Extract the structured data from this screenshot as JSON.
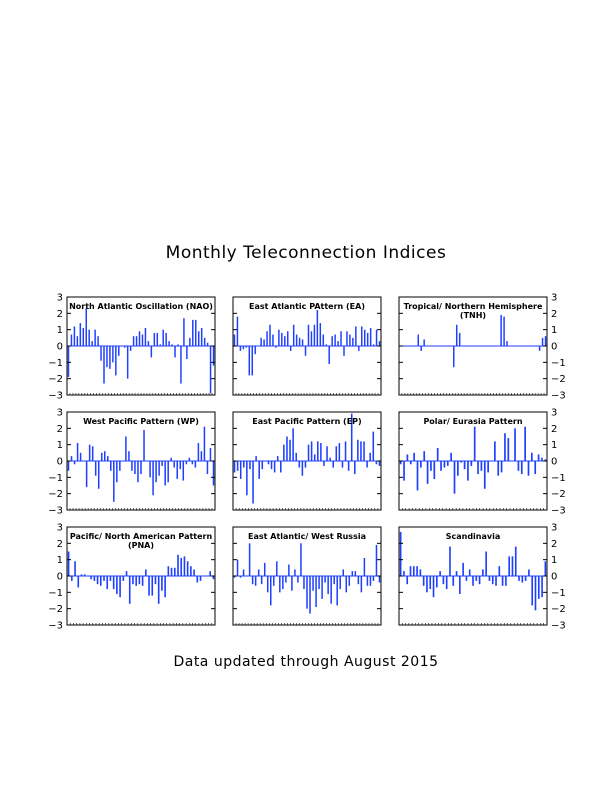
{
  "page": {
    "title": "Monthly Teleconnection Indices",
    "footer": "Data updated through August 2015"
  },
  "colors": {
    "bar": "#1f3fff",
    "frame": "#000000"
  },
  "chart_data": [
    {
      "type": "bar",
      "title": "North Atlantic Oscillation (NAO)",
      "title2": "",
      "ylim": [
        -3,
        3
      ],
      "yticks": [
        -3,
        -2,
        -1,
        0,
        1,
        2,
        3
      ],
      "values": [
        -1.9,
        0.7,
        1.2,
        0.6,
        1.4,
        1.1,
        2.3,
        1.0,
        0.3,
        1.0,
        0.6,
        -0.9,
        -2.3,
        -1.3,
        -1.4,
        -1.0,
        -1.8,
        -0.6,
        0.0,
        -0.1,
        -2.0,
        -0.3,
        0.6,
        0.6,
        0.9,
        0.7,
        1.1,
        0.3,
        -0.7,
        0.8,
        0.8,
        0.1,
        1.0,
        0.8,
        0.3,
        0.1,
        -0.7,
        0.1,
        -2.3,
        1.7,
        -0.8,
        0.5,
        1.6,
        1.6,
        0.9,
        1.1,
        0.5,
        0.2,
        -2.9,
        -1.2
      ]
    },
    {
      "type": "bar",
      "title": "East Atlantic PAttern (EA)",
      "title2": "",
      "ylim": [
        -3,
        3
      ],
      "yticks": [
        -3,
        -2,
        -1,
        0,
        1,
        2,
        3
      ],
      "values": [
        0.7,
        1.8,
        -0.3,
        -0.2,
        -0.1,
        -1.8,
        -1.8,
        -0.5,
        0.0,
        0.5,
        0.4,
        0.9,
        1.3,
        0.7,
        -0.1,
        1.0,
        0.8,
        0.6,
        0.9,
        -0.3,
        1.3,
        0.7,
        0.5,
        0.4,
        -0.6,
        1.3,
        0.9,
        1.3,
        2.2,
        1.4,
        0.7,
        0.1,
        -1.1,
        0.6,
        0.7,
        0.3,
        0.9,
        -0.6,
        0.9,
        0.7,
        0.5,
        1.2,
        -0.3,
        1.2,
        1.0,
        0.8,
        1.1,
        0.1,
        1.0,
        0.3
      ]
    },
    {
      "type": "bar",
      "title": "Tropical/ Northern Hemisphere",
      "title2": "(TNH)",
      "ylim": [
        -3,
        3
      ],
      "yticks": [
        -3,
        -2,
        -1,
        0,
        1,
        2,
        3
      ],
      "values": [
        0,
        0,
        0,
        0,
        0,
        0,
        0.7,
        -0.3,
        0.4,
        0,
        0,
        0,
        0,
        0,
        0,
        0,
        0,
        0,
        -1.3,
        1.3,
        0.8,
        0,
        0,
        0,
        0,
        0,
        0,
        0,
        0,
        0,
        0,
        0,
        0,
        0,
        1.9,
        1.8,
        0.3,
        0,
        0,
        0,
        0,
        0,
        0,
        0,
        0,
        0,
        0,
        -0.3,
        0.5,
        0.6
      ]
    },
    {
      "type": "bar",
      "title": "West Pacific Pattern (WP)",
      "title2": "",
      "ylim": [
        -3,
        3
      ],
      "yticks": [
        -3,
        -2,
        -1,
        0,
        1,
        2,
        3
      ],
      "values": [
        -0.6,
        0.3,
        -0.2,
        1.1,
        0.5,
        0.0,
        -1.6,
        1.0,
        0.9,
        -0.9,
        -1.7,
        0.5,
        0.6,
        0.3,
        -0.6,
        -2.5,
        -1.3,
        -0.6,
        0.0,
        1.5,
        0.6,
        -0.6,
        -0.8,
        -1.3,
        -0.8,
        1.9,
        0.0,
        -1.0,
        -2.1,
        -1.3,
        -0.9,
        -0.3,
        -1.5,
        -1.3,
        0.2,
        -0.4,
        -1.1,
        -0.5,
        -1.2,
        -0.2,
        0.2,
        -0.2,
        -0.4,
        1.1,
        0.6,
        2.1,
        -0.8,
        0.8,
        -1.5
      ]
    },
    {
      "type": "bar",
      "title": "East Pacific Pattern (EP)",
      "title2": "",
      "ylim": [
        -3,
        3
      ],
      "yticks": [
        -3,
        -2,
        -1,
        0,
        1,
        2,
        3
      ],
      "values": [
        -0.7,
        -0.6,
        -1.1,
        -0.4,
        -2.1,
        -0.5,
        -2.6,
        0.3,
        -1.1,
        -0.5,
        0.0,
        -0.2,
        -0.5,
        -0.7,
        0.3,
        -0.7,
        1.0,
        1.5,
        1.3,
        2.0,
        0.5,
        -0.4,
        -0.9,
        -0.4,
        1.0,
        1.2,
        0.4,
        1.2,
        1.1,
        -0.3,
        0.9,
        0.2,
        -0.4,
        0.9,
        1.1,
        -0.4,
        1.2,
        -0.6,
        2.9,
        -0.8,
        1.3,
        1.2,
        1.2,
        -0.4,
        0.5,
        1.8,
        -0.2,
        -0.3
      ]
    },
    {
      "type": "bar",
      "title": "Polar/ Eurasia Pattern",
      "title2": "",
      "ylim": [
        -3,
        3
      ],
      "yticks": [
        -3,
        -2,
        -1,
        0,
        1,
        2,
        3
      ],
      "values": [
        -0.2,
        -1.2,
        0.4,
        -0.2,
        0.5,
        -1.8,
        -0.4,
        0.6,
        -1.4,
        -0.6,
        -1.1,
        0.8,
        -0.6,
        -0.4,
        -0.3,
        0.5,
        -2.0,
        -0.9,
        -0.1,
        -0.5,
        -1.2,
        -0.3,
        2.1,
        -0.8,
        -0.6,
        -1.7,
        -0.7,
        0.0,
        1.2,
        -0.9,
        -0.7,
        1.7,
        1.4,
        0.0,
        2.0,
        -0.6,
        -0.8,
        2.1,
        -0.9,
        0.5,
        -0.8,
        0.4,
        0.2,
        0.1
      ]
    },
    {
      "type": "bar",
      "title": "Pacific/ North American Pattern",
      "title2": "(PNA)",
      "ylim": [
        -3,
        3
      ],
      "yticks": [
        -3,
        -2,
        -1,
        0,
        1,
        2,
        3
      ],
      "values": [
        1.5,
        -0.3,
        0.9,
        -0.7,
        0.1,
        0.1,
        0.0,
        -0.2,
        -0.3,
        -0.5,
        -0.6,
        -0.3,
        -0.8,
        -0.3,
        -0.8,
        -1.1,
        -1.3,
        -0.3,
        0.3,
        -1.7,
        -0.5,
        -0.6,
        -0.5,
        -0.6,
        0.4,
        -1.2,
        -1.2,
        -0.5,
        -1.7,
        -0.9,
        -1.3,
        0.6,
        0.5,
        0.5,
        1.3,
        1.1,
        1.2,
        0.9,
        0.6,
        0.4,
        -0.4,
        -0.3,
        0.0,
        0.0,
        0.3,
        -0.2
      ]
    },
    {
      "type": "bar",
      "title": "East Atlantic/ West Russia",
      "title2": "",
      "ylim": [
        -3,
        3
      ],
      "yticks": [
        -3,
        -2,
        -1,
        0,
        1,
        2,
        3
      ],
      "values": [
        -0.1,
        1.0,
        -0.1,
        0.4,
        0.0,
        2.0,
        -0.5,
        -0.6,
        0.4,
        -0.5,
        0.8,
        -1.0,
        -1.8,
        -0.6,
        0.9,
        -1.0,
        -0.8,
        -0.4,
        0.7,
        -0.9,
        0.4,
        -0.4,
        2.0,
        -0.8,
        -2.0,
        -2.3,
        -0.9,
        -1.9,
        -0.8,
        -1.4,
        -0.4,
        -1.1,
        -1.7,
        -0.5,
        -1.8,
        -0.8,
        0.4,
        -1.0,
        -0.6,
        0.3,
        0.3,
        -0.5,
        -1.0,
        1.1,
        -0.6,
        -0.6,
        -0.3,
        1.9,
        -0.4
      ]
    },
    {
      "type": "bar",
      "title": "Scandinavia",
      "title2": "",
      "ylim": [
        -3,
        3
      ],
      "yticks": [
        -3,
        -2,
        -1,
        0,
        1,
        2,
        3
      ],
      "values": [
        2.7,
        0.3,
        -0.5,
        0.6,
        0.6,
        0.6,
        0.4,
        -0.6,
        -1.0,
        -0.8,
        -1.3,
        -0.7,
        0.3,
        -0.5,
        -0.8,
        1.8,
        -0.6,
        0.3,
        -1.1,
        0.8,
        -0.3,
        0.4,
        -0.6,
        -0.3,
        -0.5,
        0.4,
        1.5,
        -0.3,
        -0.5,
        -0.6,
        0.6,
        -0.6,
        -0.6,
        1.2,
        1.2,
        1.8,
        -0.3,
        -0.4,
        -0.3,
        0.4,
        -1.8,
        -2.1,
        -1.4,
        -1.3,
        0.9
      ]
    }
  ]
}
